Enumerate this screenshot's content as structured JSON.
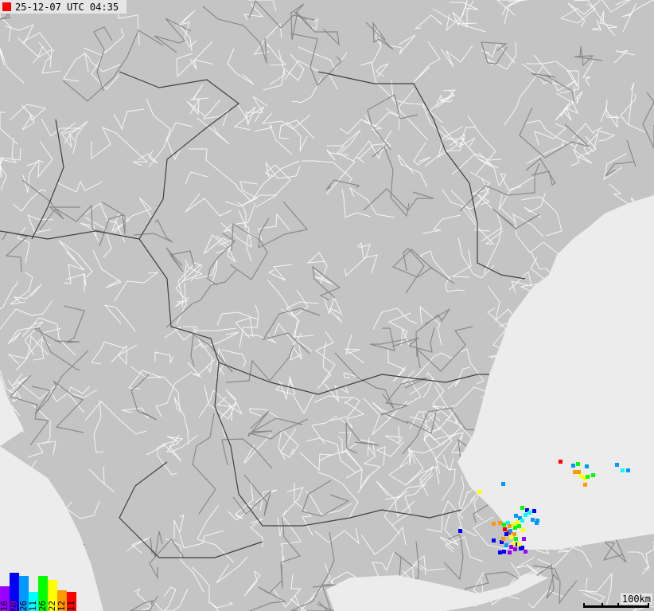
{
  "header": {
    "timestamp": "25-12-07 UTC 04:35",
    "marker_color": "#ff0000"
  },
  "legend": {
    "bars": [
      {
        "count": "16",
        "color": "#9900ff",
        "text_color": "#000000"
      },
      {
        "count": "29",
        "color": "#0000ff",
        "text_color": "#ff0000"
      },
      {
        "count": "26",
        "color": "#0099ff",
        "text_color": "#000000"
      },
      {
        "count": "11",
        "color": "#00ffff",
        "text_color": "#000000"
      },
      {
        "count": "26",
        "color": "#00ff00",
        "text_color": "#000000"
      },
      {
        "count": "22",
        "color": "#ffff00",
        "text_color": "#000000"
      },
      {
        "count": "12",
        "color": "#ff9900",
        "text_color": "#000000"
      },
      {
        "count": "11",
        "color": "#ff0000",
        "text_color": "#000000"
      }
    ]
  },
  "scale": {
    "label": "100km"
  },
  "colors": {
    "land": "#c4c4c4",
    "sea": "#ececec",
    "roads": "#ffffff",
    "borders": "#404040"
  }
}
